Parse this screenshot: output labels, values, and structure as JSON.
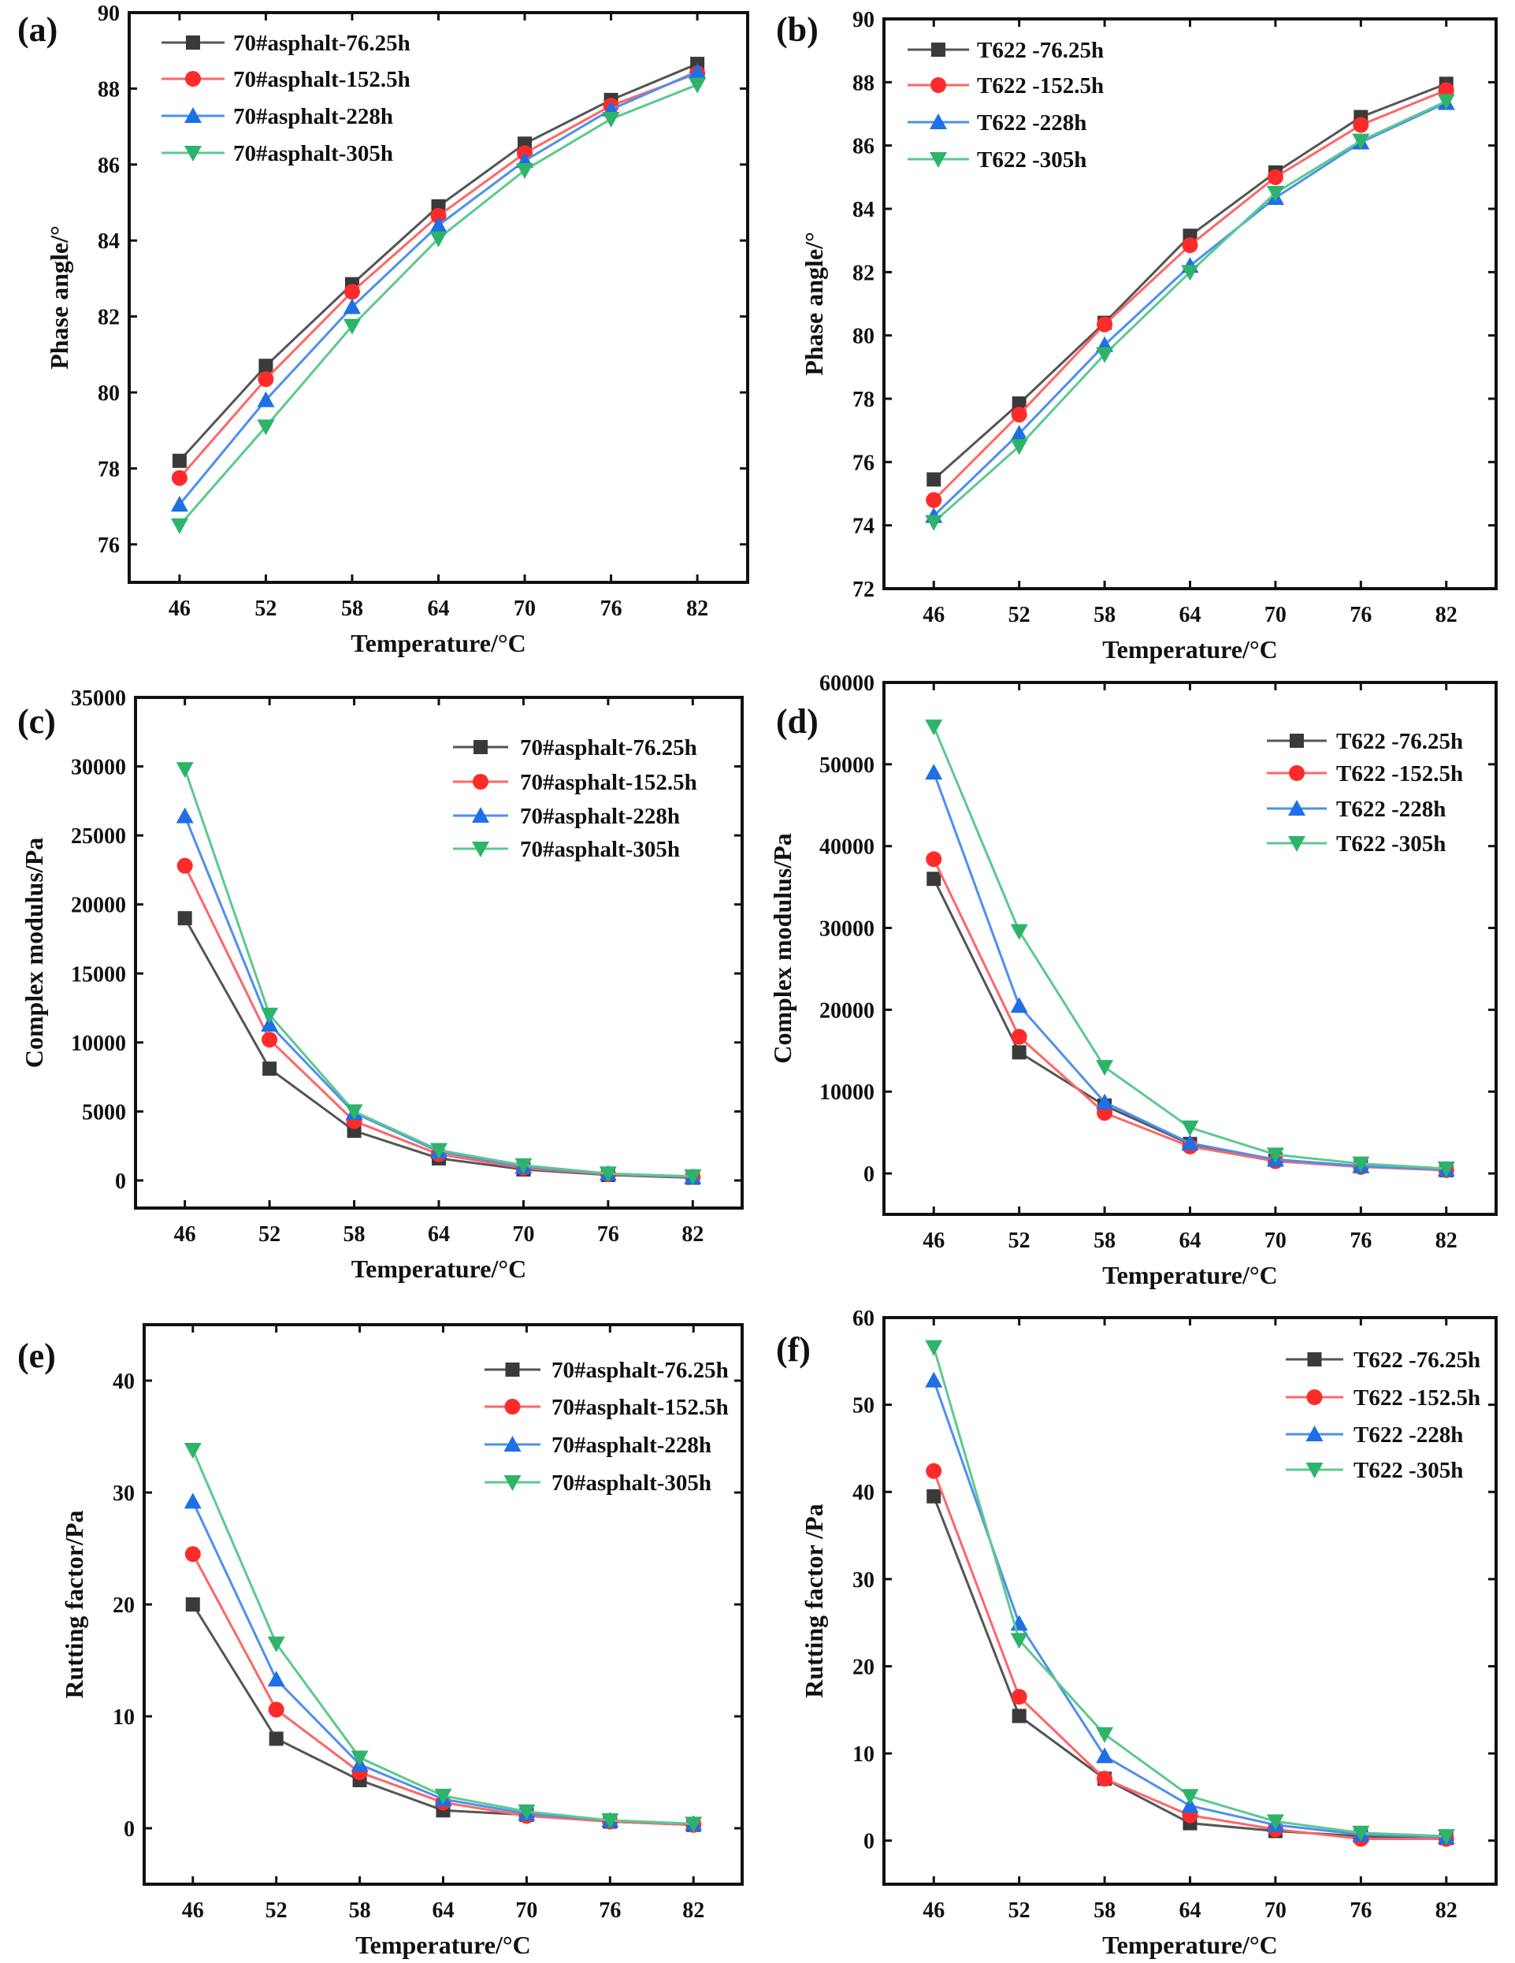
{
  "colors": {
    "s0": "#3a3a3a",
    "s1": "#ff2b2b",
    "s2": "#1f6fe5",
    "s3": "#2db46a"
  },
  "markers": [
    "square",
    "circle",
    "triangle-up",
    "triangle-down"
  ],
  "chart_data": [
    {
      "panel": "(a)",
      "type": "line",
      "xlabel": "Temperature/°C",
      "ylabel": "Phase angle/°",
      "x": [
        46,
        52,
        58,
        64,
        70,
        76,
        82
      ],
      "xlim": [
        42.5,
        85.5
      ],
      "ylim": [
        75,
        90
      ],
      "yticks": [
        76,
        78,
        80,
        82,
        84,
        86,
        88,
        90
      ],
      "legend": "top-left",
      "series": [
        {
          "name": "70#asphalt-76.25h",
          "values": [
            78.2,
            80.7,
            82.85,
            84.9,
            86.55,
            87.7,
            88.65
          ]
        },
        {
          "name": "70#asphalt-152.5h",
          "values": [
            77.75,
            80.35,
            82.65,
            84.65,
            86.3,
            87.55,
            88.4
          ]
        },
        {
          "name": "70#asphalt-228h",
          "values": [
            77.05,
            79.8,
            82.25,
            84.4,
            86.1,
            87.45,
            88.45
          ]
        },
        {
          "name": "70#asphalt-305h",
          "values": [
            76.5,
            79.1,
            81.75,
            84.05,
            85.85,
            87.2,
            88.1
          ]
        }
      ]
    },
    {
      "panel": "(b)",
      "type": "line",
      "xlabel": "Temperature/°C",
      "ylabel": "Phase angle/°",
      "x": [
        46,
        52,
        58,
        64,
        70,
        76,
        82
      ],
      "xlim": [
        42.5,
        85.5
      ],
      "ylim": [
        72,
        90
      ],
      "yticks": [
        72,
        74,
        76,
        78,
        80,
        82,
        84,
        86,
        88,
        90
      ],
      "legend": "top-left",
      "series": [
        {
          "name": "T622 -76.25h",
          "values": [
            75.45,
            77.85,
            80.4,
            83.15,
            85.15,
            86.9,
            87.95
          ]
        },
        {
          "name": "T622 -152.5h",
          "values": [
            74.8,
            77.5,
            80.35,
            82.85,
            85.0,
            86.65,
            87.75
          ]
        },
        {
          "name": "T622 -228h",
          "values": [
            74.3,
            76.9,
            79.7,
            82.2,
            84.35,
            86.1,
            87.35
          ]
        },
        {
          "name": "T622 -305h",
          "values": [
            74.1,
            76.5,
            79.4,
            82.0,
            84.5,
            86.15,
            87.4
          ]
        }
      ]
    },
    {
      "panel": "(c)",
      "type": "line",
      "xlabel": "Temperature/°C",
      "ylabel": "Complex modulus/Pa",
      "x": [
        46,
        52,
        58,
        64,
        70,
        76,
        82
      ],
      "xlim": [
        42.5,
        85.5
      ],
      "ylim": [
        -2000,
        35000
      ],
      "yticks": [
        0,
        5000,
        10000,
        15000,
        20000,
        25000,
        30000,
        35000
      ],
      "legend": "top-right",
      "series": [
        {
          "name": "70#asphalt-76.25h",
          "values": [
            19000,
            8100,
            3600,
            1600,
            800,
            400,
            200
          ]
        },
        {
          "name": "70#asphalt-152.5h",
          "values": [
            22800,
            10200,
            4300,
            1900,
            900,
            450,
            250
          ]
        },
        {
          "name": "70#asphalt-228h",
          "values": [
            26400,
            11300,
            4900,
            2100,
            1000,
            500,
            250
          ]
        },
        {
          "name": "70#asphalt-305h",
          "values": [
            29800,
            12000,
            5000,
            2200,
            1100,
            500,
            300
          ]
        }
      ]
    },
    {
      "panel": "(d)",
      "type": "line",
      "xlabel": "Temperature/°C",
      "ylabel": "Complex modulus/Pa",
      "x": [
        46,
        52,
        58,
        64,
        70,
        76,
        82
      ],
      "xlim": [
        42.5,
        85.5
      ],
      "ylim": [
        -5000,
        60000
      ],
      "yticks": [
        0,
        10000,
        20000,
        30000,
        40000,
        50000,
        60000
      ],
      "legend": "top-right",
      "series": [
        {
          "name": "T622 -76.25h",
          "values": [
            36000,
            14800,
            8300,
            3600,
            1700,
            900,
            400
          ]
        },
        {
          "name": "T622 -152.5h",
          "values": [
            38400,
            16700,
            7400,
            3300,
            1500,
            800,
            400
          ]
        },
        {
          "name": "T622 -228h",
          "values": [
            49000,
            20500,
            8700,
            3700,
            1700,
            900,
            500
          ]
        },
        {
          "name": "T622 -305h",
          "values": [
            54600,
            29600,
            13000,
            5600,
            2300,
            1200,
            600
          ]
        }
      ]
    },
    {
      "panel": "(e)",
      "type": "line",
      "xlabel": "Temperature/°C",
      "ylabel": "Rutting factor/Pa",
      "x": [
        46,
        52,
        58,
        64,
        70,
        76,
        82
      ],
      "xlim": [
        42.5,
        85.5
      ],
      "ylim": [
        -5,
        45
      ],
      "yticks": [
        0,
        10,
        20,
        30,
        40
      ],
      "legend": "top-right",
      "series": [
        {
          "name": "70#asphalt-76.25h",
          "values": [
            20,
            8,
            4.3,
            1.6,
            1.2,
            0.6,
            0.3
          ]
        },
        {
          "name": "70#asphalt-152.5h",
          "values": [
            24.5,
            10.6,
            5,
            2.3,
            1.1,
            0.6,
            0.3
          ]
        },
        {
          "name": "70#asphalt-228h",
          "values": [
            29.2,
            13.3,
            5.7,
            2.6,
            1.3,
            0.7,
            0.4
          ]
        },
        {
          "name": "70#asphalt-305h",
          "values": [
            33.8,
            16.5,
            6.3,
            2.9,
            1.5,
            0.7,
            0.4
          ]
        }
      ]
    },
    {
      "panel": "(f)",
      "type": "line",
      "xlabel": "Temperature/°C",
      "ylabel": "Rutting factor /Pa",
      "x": [
        46,
        52,
        58,
        64,
        70,
        76,
        82
      ],
      "xlim": [
        42.5,
        85.5
      ],
      "ylim": [
        -5,
        60
      ],
      "yticks": [
        0,
        10,
        20,
        30,
        40,
        50,
        60
      ],
      "legend": "top-right",
      "series": [
        {
          "name": "T622 -76.25h",
          "values": [
            39.5,
            14.3,
            7.1,
            2,
            1.1,
            0.5,
            0.3
          ]
        },
        {
          "name": "T622 -152.5h",
          "values": [
            42.4,
            16.5,
            7.1,
            2.9,
            1.3,
            0.2,
            0.2
          ]
        },
        {
          "name": "T622 -228h",
          "values": [
            52.8,
            24.9,
            9.7,
            4,
            1.8,
            0.7,
            0.4
          ]
        },
        {
          "name": "T622 -305h",
          "values": [
            56.6,
            23,
            12.2,
            5.1,
            2.2,
            0.9,
            0.5
          ]
        }
      ]
    }
  ]
}
